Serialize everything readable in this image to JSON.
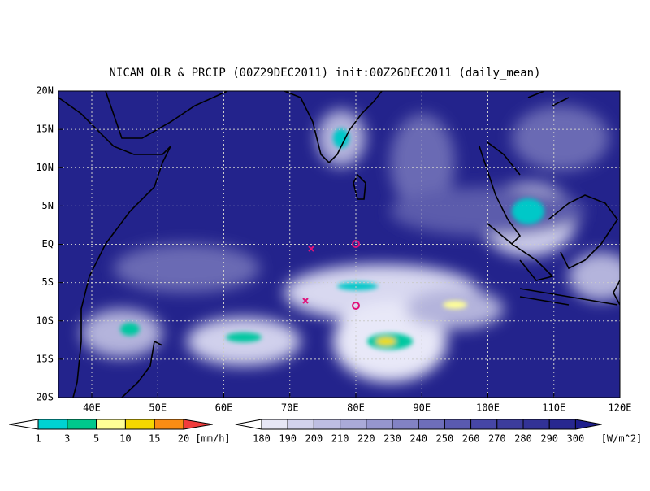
{
  "header": {
    "title": "NICAM OLR & PRCIP (00Z29DEC2011) init:00Z26DEC2011 (daily_mean)"
  },
  "map": {
    "lat_labels": [
      "20N",
      "15N",
      "10N",
      "5N",
      "EQ",
      "5S",
      "10S",
      "15S",
      "20S"
    ],
    "lon_labels": [
      "40E",
      "50E",
      "60E",
      "70E",
      "80E",
      "90E",
      "100E",
      "110E",
      "120E"
    ]
  },
  "precip_legend": {
    "labels": [
      "1",
      "3",
      "5",
      "10",
      "15",
      "20"
    ],
    "unit": "[mm/h]"
  },
  "olr_legend": {
    "labels": [
      "180",
      "190",
      "200",
      "210",
      "220",
      "230",
      "240",
      "250",
      "260",
      "270",
      "280",
      "290",
      "300"
    ],
    "unit": "[W/m^2]"
  }
}
